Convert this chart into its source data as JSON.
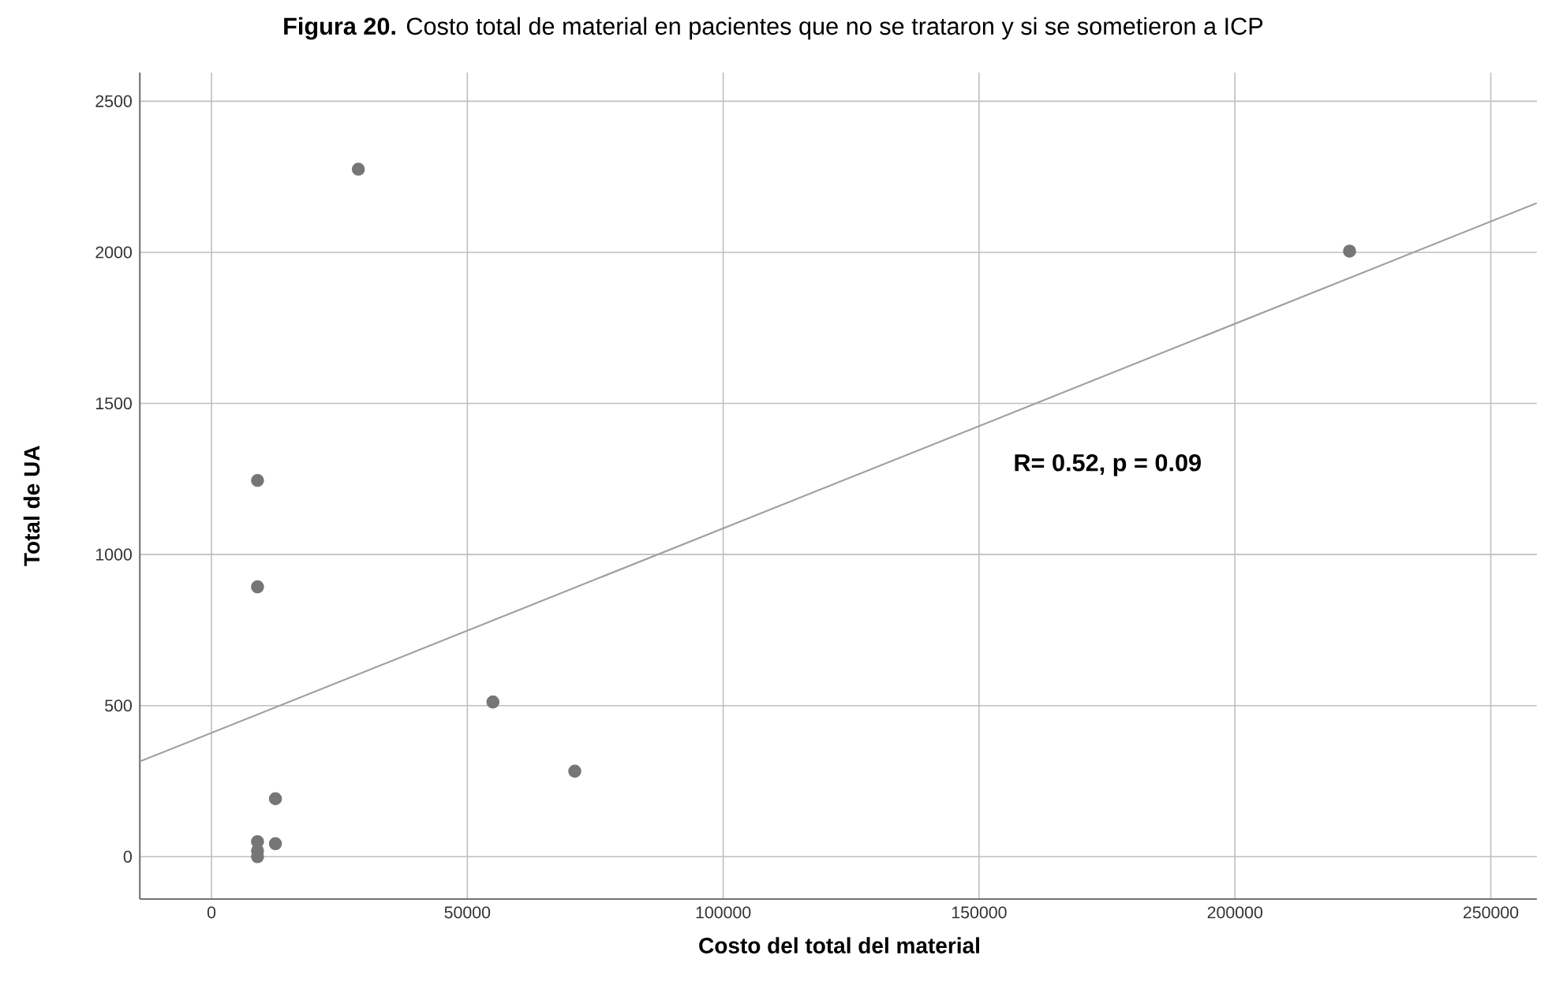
{
  "chart_data": {
    "type": "scatter",
    "title": "**Figura 20.** Costo total de material en pacientes que no se trataron y si se sometieron a ICP",
    "xlabel": "Costo del total del material",
    "ylabel": "Total de UA",
    "annotations": [
      "R= 0.52, p = 0.09"
    ],
    "xlim": [
      -14000,
      259000
    ],
    "ylim": [
      -140,
      2595
    ],
    "xticks": [
      0,
      50000,
      100000,
      150000,
      200000,
      250000
    ],
    "yticks": [
      0,
      500,
      1000,
      1500,
      2000,
      2500
    ],
    "grid": true,
    "marker": "circle",
    "series": [
      {
        "color": "#767676",
        "x": [
          28700,
          9000,
          9000,
          55000,
          71000,
          12500,
          9000,
          12500,
          9000,
          9000,
          222400
        ],
        "values": [
          2275,
          1245,
          893,
          512,
          283,
          192,
          50,
          43,
          20,
          0,
          2004
        ]
      },
      {
        "type": "line",
        "marker": "none",
        "color": "#a0a0a0",
        "x": [
          -14000,
          259000
        ],
        "values": [
          315,
          2163
        ]
      }
    ]
  }
}
